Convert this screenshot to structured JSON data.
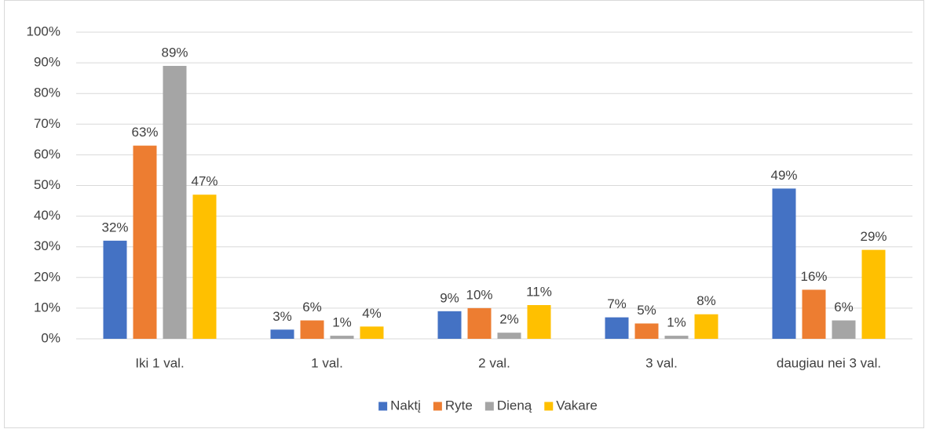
{
  "chart_data": {
    "type": "bar",
    "categories": [
      "Iki 1 val.",
      "1 val.",
      "2 val.",
      "3 val.",
      "daugiau nei 3 val."
    ],
    "series": [
      {
        "name": "Naktį",
        "color": "#4472c4",
        "values": [
          32,
          3,
          9,
          7,
          49
        ],
        "value_labels": [
          "32%",
          "3%",
          "9%",
          "7%",
          "49%"
        ]
      },
      {
        "name": "Ryte",
        "color": "#ed7d31",
        "values": [
          63,
          6,
          10,
          5,
          16
        ],
        "value_labels": [
          "63%",
          "6%",
          "10%",
          "5%",
          "16%"
        ]
      },
      {
        "name": "Dieną",
        "color": "#a5a5a5",
        "values": [
          89,
          1,
          2,
          1,
          6
        ],
        "value_labels": [
          "89%",
          "1%",
          "2%",
          "1%",
          "6%"
        ]
      },
      {
        "name": "Vakare",
        "color": "#ffc000",
        "values": [
          47,
          4,
          11,
          8,
          29
        ],
        "value_labels": [
          "47%",
          "4%",
          "11%",
          "8%",
          "29%"
        ]
      }
    ],
    "ylim": [
      0,
      100
    ],
    "yticks": [
      {
        "value": 0,
        "label": "0%"
      },
      {
        "value": 10,
        "label": "10%"
      },
      {
        "value": 20,
        "label": "20%"
      },
      {
        "value": 30,
        "label": "30%"
      },
      {
        "value": 40,
        "label": "40%"
      },
      {
        "value": 50,
        "label": "50%"
      },
      {
        "value": 60,
        "label": "60%"
      },
      {
        "value": 70,
        "label": "70%"
      },
      {
        "value": 80,
        "label": "80%"
      },
      {
        "value": 90,
        "label": "90%"
      },
      {
        "value": 100,
        "label": "100%"
      }
    ],
    "grid": true,
    "legend": "bottom"
  }
}
